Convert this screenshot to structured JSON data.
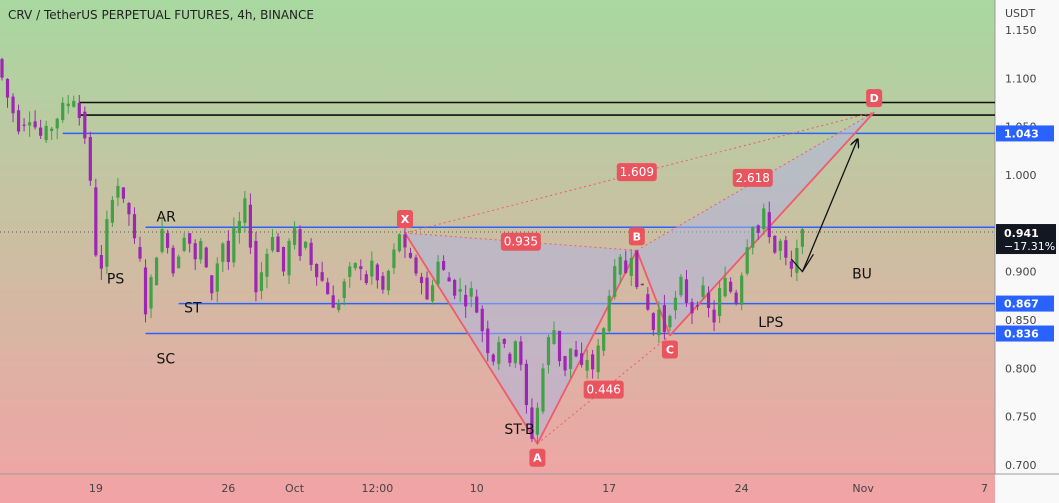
{
  "title": "CRV / TetherUS PERPETUAL FUTURES, 4h, BINANCE",
  "currency": "USDT",
  "colors": {
    "bg_top": "#a8d8a0",
    "bg_bottom": "#f2a3a5",
    "bull": "#43a047",
    "bear": "#9c27b0",
    "hline_blue": "#2962ff",
    "hline_black": "#111111",
    "harmonic": "#f05a6a",
    "harmonic_fill": "#b0b4e0",
    "badge": "#e9545f"
  },
  "chart_data": {
    "type": "candlestick",
    "symbol": "CRV / TetherUS PERPETUAL FUTURES",
    "timeframe": "4h",
    "exchange": "BINANCE",
    "y_axis": {
      "range": [
        0.69,
        1.165
      ],
      "ticks": [
        "0.700",
        "0.750",
        "0.800",
        "0.850",
        "0.900",
        "1.000",
        "1.050",
        "1.100",
        "1.150"
      ],
      "tick_values": [
        0.7,
        0.75,
        0.8,
        0.85,
        0.9,
        1.0,
        1.05,
        1.1,
        1.15
      ]
    },
    "x_axis": {
      "ticks": [
        "19",
        "26",
        "Oct",
        "12:00",
        "10",
        "17",
        "24",
        "Nov",
        "7"
      ],
      "tick_index": [
        17,
        41,
        53,
        68,
        86,
        110,
        134,
        156,
        178
      ]
    },
    "price_labels": [
      {
        "text": "1.043",
        "value": 1.043,
        "style": "blue"
      },
      {
        "text": "0.941",
        "sub": "−17.31%",
        "value": 0.941,
        "style": "dark"
      },
      {
        "text": "0.867",
        "value": 0.867,
        "style": "blue"
      },
      {
        "text": "0.836",
        "value": 0.836,
        "style": "blue"
      }
    ],
    "levels": [
      {
        "value": 1.075,
        "color": "black",
        "from": 14,
        "to": 180
      },
      {
        "value": 1.062,
        "color": "black",
        "from": 14,
        "to": 180
      },
      {
        "value": 1.043,
        "color": "blue",
        "from": 11,
        "to": 180
      },
      {
        "value": 0.946,
        "color": "blue",
        "from": 26,
        "to": 180
      },
      {
        "value": 0.867,
        "color": "blue",
        "from": 32,
        "to": 180
      },
      {
        "value": 0.836,
        "color": "blue",
        "from": 26,
        "to": 180
      }
    ],
    "wyckoff_labels": [
      {
        "text": "PS",
        "x": 19,
        "y": 0.888
      },
      {
        "text": "AR",
        "x": 28,
        "y": 0.952
      },
      {
        "text": "ST",
        "x": 33,
        "y": 0.858
      },
      {
        "text": "SC",
        "x": 28,
        "y": 0.805
      },
      {
        "text": "ST-B",
        "x": 91,
        "y": 0.732
      },
      {
        "text": "LPS",
        "x": 137,
        "y": 0.843
      },
      {
        "text": "BU",
        "x": 154,
        "y": 0.893
      }
    ],
    "harmonic": {
      "points": [
        {
          "name": "X",
          "x": 73,
          "y": 0.94
        },
        {
          "name": "A",
          "x": 97,
          "y": 0.722
        },
        {
          "name": "B",
          "x": 115,
          "y": 0.922
        },
        {
          "name": "C",
          "x": 121,
          "y": 0.834
        },
        {
          "name": "D",
          "x": 158,
          "y": 1.065
        }
      ],
      "ratios": [
        {
          "text": "0.935",
          "x": 94,
          "y": 0.931
        },
        {
          "text": "0.446",
          "x": 109,
          "y": 0.778
        },
        {
          "text": "1.609",
          "x": 115,
          "y": 1.003
        },
        {
          "text": "2.618",
          "x": 136,
          "y": 0.997
        }
      ]
    },
    "projection_arrow": {
      "from": {
        "x": 145,
        "y": 0.9
      },
      "to": {
        "x": 155,
        "y": 1.037
      }
    },
    "price_series": [
      [
        0,
        1.12
      ],
      [
        2,
        1.08
      ],
      [
        4,
        1.05
      ],
      [
        6,
        1.06
      ],
      [
        8,
        1.04
      ],
      [
        10,
        1.05
      ],
      [
        12,
        1.07
      ],
      [
        14,
        1.08
      ],
      [
        16,
        1.04
      ],
      [
        17,
        0.99
      ],
      [
        18,
        0.92
      ],
      [
        19,
        0.9
      ],
      [
        20,
        0.95
      ],
      [
        21,
        0.98
      ],
      [
        22,
        0.99
      ],
      [
        23,
        0.97
      ],
      [
        24,
        0.96
      ],
      [
        25,
        0.93
      ],
      [
        26,
        0.91
      ],
      [
        27,
        0.86
      ],
      [
        28,
        0.89
      ],
      [
        29,
        0.92
      ],
      [
        30,
        0.94
      ],
      [
        31,
        0.93
      ],
      [
        32,
        0.9
      ],
      [
        33,
        0.92
      ],
      [
        34,
        0.94
      ],
      [
        35,
        0.93
      ],
      [
        36,
        0.91
      ],
      [
        37,
        0.93
      ],
      [
        38,
        0.9
      ],
      [
        39,
        0.88
      ],
      [
        40,
        0.91
      ],
      [
        41,
        0.93
      ],
      [
        42,
        0.91
      ],
      [
        43,
        0.94
      ],
      [
        44,
        0.95
      ],
      [
        45,
        0.97
      ],
      [
        46,
        0.93
      ],
      [
        47,
        0.88
      ],
      [
        48,
        0.9
      ],
      [
        49,
        0.92
      ],
      [
        50,
        0.94
      ],
      [
        51,
        0.92
      ],
      [
        52,
        0.9
      ],
      [
        53,
        0.93
      ],
      [
        54,
        0.94
      ],
      [
        55,
        0.92
      ],
      [
        56,
        0.93
      ],
      [
        57,
        0.91
      ],
      [
        58,
        0.9
      ],
      [
        59,
        0.89
      ],
      [
        60,
        0.88
      ],
      [
        61,
        0.86
      ],
      [
        62,
        0.87
      ],
      [
        63,
        0.89
      ],
      [
        64,
        0.9
      ],
      [
        65,
        0.91
      ],
      [
        66,
        0.9
      ],
      [
        67,
        0.89
      ],
      [
        68,
        0.91
      ],
      [
        69,
        0.89
      ],
      [
        70,
        0.88
      ],
      [
        71,
        0.9
      ],
      [
        72,
        0.92
      ],
      [
        73,
        0.94
      ],
      [
        74,
        0.92
      ],
      [
        75,
        0.91
      ],
      [
        76,
        0.9
      ],
      [
        77,
        0.89
      ],
      [
        78,
        0.87
      ],
      [
        79,
        0.89
      ],
      [
        80,
        0.91
      ],
      [
        81,
        0.9
      ],
      [
        82,
        0.89
      ],
      [
        83,
        0.88
      ],
      [
        84,
        0.88
      ],
      [
        85,
        0.87
      ],
      [
        86,
        0.88
      ],
      [
        87,
        0.86
      ],
      [
        88,
        0.84
      ],
      [
        89,
        0.82
      ],
      [
        90,
        0.81
      ],
      [
        91,
        0.83
      ],
      [
        92,
        0.82
      ],
      [
        93,
        0.81
      ],
      [
        94,
        0.83
      ],
      [
        95,
        0.8
      ],
      [
        96,
        0.76
      ],
      [
        97,
        0.73
      ],
      [
        98,
        0.76
      ],
      [
        99,
        0.8
      ],
      [
        100,
        0.83
      ],
      [
        101,
        0.84
      ],
      [
        102,
        0.81
      ],
      [
        103,
        0.8
      ],
      [
        104,
        0.82
      ],
      [
        105,
        0.81
      ],
      [
        106,
        0.8
      ],
      [
        107,
        0.81
      ],
      [
        108,
        0.8
      ],
      [
        109,
        0.82
      ],
      [
        110,
        0.84
      ],
      [
        111,
        0.88
      ],
      [
        112,
        0.9
      ],
      [
        113,
        0.91
      ],
      [
        114,
        0.9
      ],
      [
        115,
        0.92
      ],
      [
        116,
        0.89
      ],
      [
        117,
        0.88
      ],
      [
        118,
        0.86
      ],
      [
        119,
        0.84
      ],
      [
        120,
        0.86
      ],
      [
        121,
        0.84
      ],
      [
        122,
        0.86
      ],
      [
        123,
        0.87
      ],
      [
        124,
        0.89
      ],
      [
        125,
        0.87
      ],
      [
        126,
        0.86
      ],
      [
        127,
        0.87
      ],
      [
        128,
        0.88
      ],
      [
        129,
        0.86
      ],
      [
        130,
        0.85
      ],
      [
        131,
        0.88
      ],
      [
        132,
        0.89
      ],
      [
        133,
        0.88
      ],
      [
        134,
        0.87
      ],
      [
        135,
        0.9
      ],
      [
        136,
        0.93
      ],
      [
        137,
        0.95
      ],
      [
        138,
        0.94
      ],
      [
        139,
        0.96
      ],
      [
        140,
        0.94
      ],
      [
        141,
        0.92
      ],
      [
        142,
        0.93
      ],
      [
        143,
        0.91
      ],
      [
        144,
        0.9
      ],
      [
        145,
        0.92
      ],
      [
        146,
        0.95
      ]
    ]
  }
}
